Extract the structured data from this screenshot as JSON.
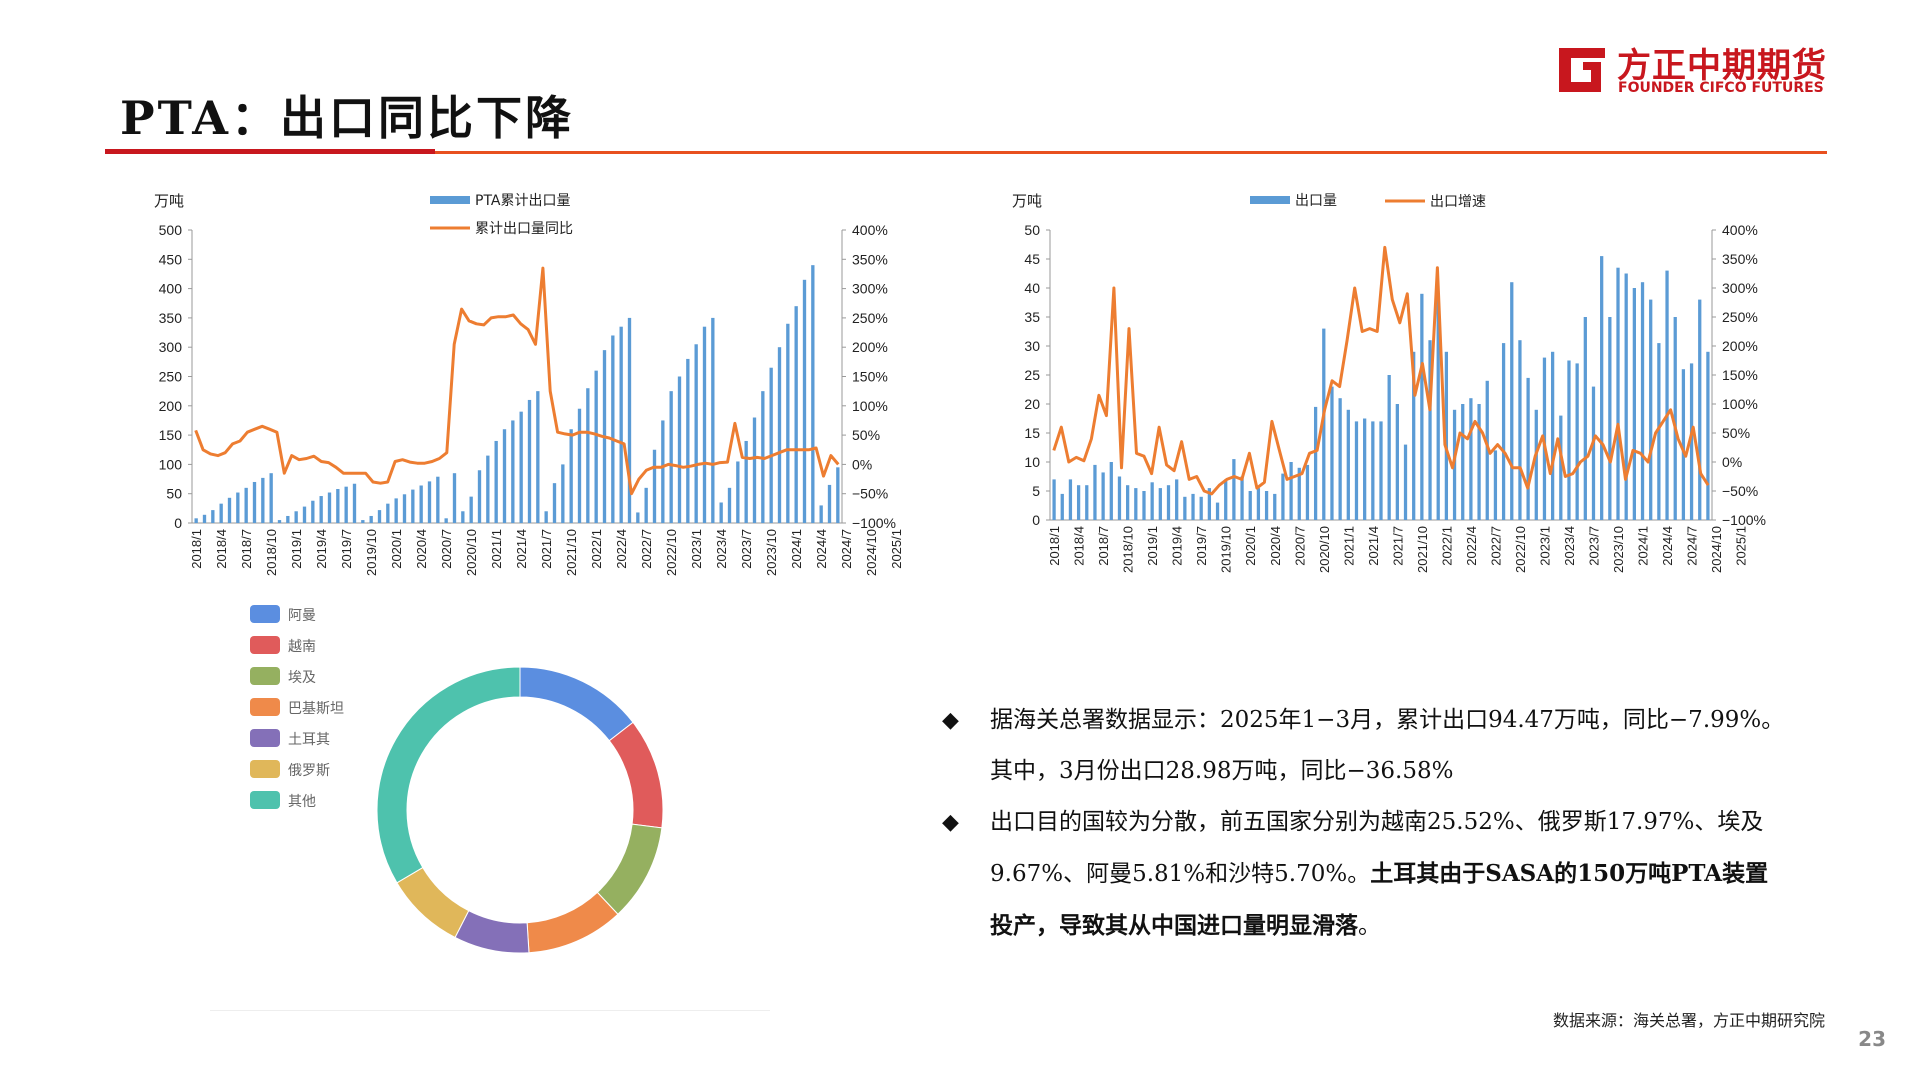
{
  "header": {
    "title": "PTA：出口同比下降",
    "logo_cn": "方正中期期货",
    "logo_en": "FOUNDER CIFCO FUTURES",
    "brand_color": "#c8171e"
  },
  "chart_data": [
    {
      "type": "bar",
      "unit_label": "万吨",
      "legend": [
        "PTA累计出口量",
        "累计出口量同比"
      ],
      "x_tick_labels": [
        "2018/1",
        "2018/4",
        "2018/7",
        "2018/10",
        "2019/1",
        "2019/4",
        "2019/7",
        "2019/10",
        "2020/1",
        "2020/4",
        "2020/7",
        "2020/10",
        "2021/1",
        "2021/4",
        "2021/7",
        "2021/10",
        "2022/1",
        "2022/4",
        "2022/7",
        "2022/10",
        "2023/1",
        "2023/4",
        "2023/7",
        "2023/10",
        "2024/1",
        "2024/4",
        "2024/7",
        "2024/10",
        "2025/1"
      ],
      "y_left_ticks": [
        "0",
        "50",
        "100",
        "150",
        "200",
        "250",
        "300",
        "350",
        "400",
        "450",
        "500"
      ],
      "y_right_ticks": [
        "−100%",
        "−50%",
        "0%",
        "50%",
        "100%",
        "150%",
        "200%",
        "250%",
        "300%",
        "350%",
        "400%"
      ],
      "ylim_left": [
        0,
        500
      ],
      "ylim_right": [
        -100,
        400
      ],
      "series": [
        {
          "name": "PTA累计出口量",
          "kind": "bar",
          "color": "#5b9bd5",
          "values": [
            8,
            14,
            22,
            33,
            43,
            52,
            60,
            70,
            77,
            85,
            5,
            12,
            20,
            28,
            38,
            46,
            52,
            58,
            62,
            67,
            5,
            12,
            22,
            33,
            42,
            49,
            57,
            64,
            71,
            79,
            8,
            85,
            20,
            45,
            90,
            115,
            140,
            160,
            175,
            190,
            210,
            225,
            20,
            68,
            100,
            160,
            195,
            230,
            260,
            295,
            320,
            335,
            350,
            18,
            60,
            125,
            175,
            225,
            250,
            280,
            305,
            335,
            350,
            35,
            60,
            105,
            140,
            180,
            225,
            265,
            300,
            340,
            370,
            415,
            440,
            30,
            65,
            95
          ]
        },
        {
          "name": "累计出口量同比",
          "kind": "line",
          "color": "#ed7d31",
          "values": [
            58,
            25,
            18,
            15,
            20,
            35,
            40,
            55,
            60,
            65,
            60,
            55,
            -15,
            15,
            8,
            10,
            14,
            5,
            3,
            -5,
            -15,
            -15,
            -15,
            -15,
            -30,
            -32,
            -30,
            5,
            8,
            4,
            2,
            2,
            5,
            10,
            20,
            205,
            265,
            245,
            240,
            238,
            250,
            252,
            252,
            255,
            240,
            230,
            205,
            335,
            125,
            55,
            52,
            50,
            55,
            55,
            52,
            48,
            45,
            40,
            35,
            -50,
            -25,
            -10,
            -5,
            -5,
            0,
            -2,
            -5,
            -3,
            0,
            2,
            0,
            3,
            4,
            70,
            12,
            10,
            12,
            10,
            15,
            20,
            25,
            25,
            25,
            25,
            28,
            -20,
            15,
            0
          ]
        }
      ]
    },
    {
      "type": "bar",
      "unit_label": "万吨",
      "legend": [
        "出口量",
        "出口增速"
      ],
      "x_tick_labels": [
        "2018/1",
        "2018/4",
        "2018/7",
        "2018/10",
        "2019/1",
        "2019/4",
        "2019/7",
        "2019/10",
        "2020/1",
        "2020/4",
        "2020/7",
        "2020/10",
        "2021/1",
        "2021/4",
        "2021/7",
        "2021/10",
        "2022/1",
        "2022/4",
        "2022/7",
        "2022/10",
        "2023/1",
        "2023/4",
        "2023/7",
        "2023/10",
        "2024/1",
        "2024/4",
        "2024/7",
        "2024/10",
        "2025/1"
      ],
      "y_left_ticks": [
        "0",
        "5",
        "10",
        "15",
        "20",
        "25",
        "30",
        "35",
        "40",
        "45",
        "50"
      ],
      "y_right_ticks": [
        "−100%",
        "−50%",
        "0%",
        "50%",
        "100%",
        "150%",
        "200%",
        "250%",
        "300%",
        "350%",
        "400%"
      ],
      "ylim_left": [
        0,
        50
      ],
      "ylim_right": [
        -100,
        400
      ],
      "series": [
        {
          "name": "出口量",
          "kind": "bar",
          "color": "#5b9bd5",
          "values": [
            7,
            4.5,
            7,
            6,
            6,
            9.5,
            8.2,
            10,
            7.5,
            6,
            5.5,
            5,
            6.5,
            5.5,
            6,
            7,
            4,
            4.5,
            4,
            5.5,
            3,
            7,
            10.5,
            7.5,
            5,
            5.5,
            5,
            4.5,
            8,
            10,
            9,
            9.5,
            19.5,
            33,
            23,
            21,
            19,
            17,
            17.5,
            17,
            17,
            25,
            20,
            13,
            29,
            39,
            31,
            39,
            29,
            19,
            20,
            21,
            20,
            24,
            12,
            30.5,
            41,
            31,
            24.5,
            19,
            28,
            29,
            18,
            27.5,
            27,
            35,
            23,
            45.5,
            35,
            43.5,
            42.5,
            40,
            41,
            38,
            30.5,
            43,
            35,
            26,
            27,
            38,
            29
          ]
        },
        {
          "name": "出口增速",
          "kind": "line",
          "color": "#ed7d31",
          "values": [
            20,
            60,
            0,
            8,
            2,
            40,
            115,
            80,
            300,
            -10,
            230,
            15,
            10,
            -20,
            60,
            -5,
            -15,
            35,
            -30,
            -25,
            -50,
            -55,
            -40,
            -30,
            -25,
            -30,
            15,
            -45,
            -35,
            70,
            20,
            -30,
            -25,
            -20,
            15,
            20,
            90,
            140,
            130,
            210,
            300,
            225,
            230,
            225,
            370,
            280,
            240,
            290,
            115,
            170,
            90,
            335,
            30,
            -10,
            50,
            40,
            70,
            50,
            15,
            30,
            15,
            -10,
            -10,
            -45,
            10,
            45,
            -20,
            40,
            -25,
            -20,
            0,
            10,
            45,
            30,
            0,
            65,
            -30,
            20,
            15,
            0,
            50,
            70,
            90,
            40,
            10,
            60,
            -20,
            -40
          ]
        }
      ]
    },
    {
      "type": "pie",
      "legend": [
        "阿曼",
        "越南",
        "埃及",
        "巴基斯坦",
        "土耳其",
        "俄罗斯",
        "其他"
      ],
      "colors": [
        "#5b8ee0",
        "#e05b5b",
        "#95b060",
        "#ef8a4a",
        "#8470b8",
        "#e0b75a",
        "#4ec2ad"
      ],
      "values": [
        14.5,
        12.5,
        11,
        11,
        8.5,
        9,
        33.5
      ]
    }
  ],
  "bullets": [
    {
      "mark": "◆",
      "text": "据海关总署数据显示：2025年1−3月，累计出口94.47万吨，同比−7.99%。其中，3月份出口28.98万吨，同比−36.58%"
    },
    {
      "mark": "◆",
      "text": "出口目的国较为分散，前五国家分别为越南25.52%、俄罗斯17.97%、埃及9.67%、阿曼5.81%和沙特5.70%。",
      "bold_text": "土耳其由于SASA的150万吨PTA装置投产，导致其从中国进口量明显滑落",
      "tail": "。"
    }
  ],
  "footer": {
    "source": "数据来源：海关总署，方正中期研究院",
    "page_number": "23"
  }
}
